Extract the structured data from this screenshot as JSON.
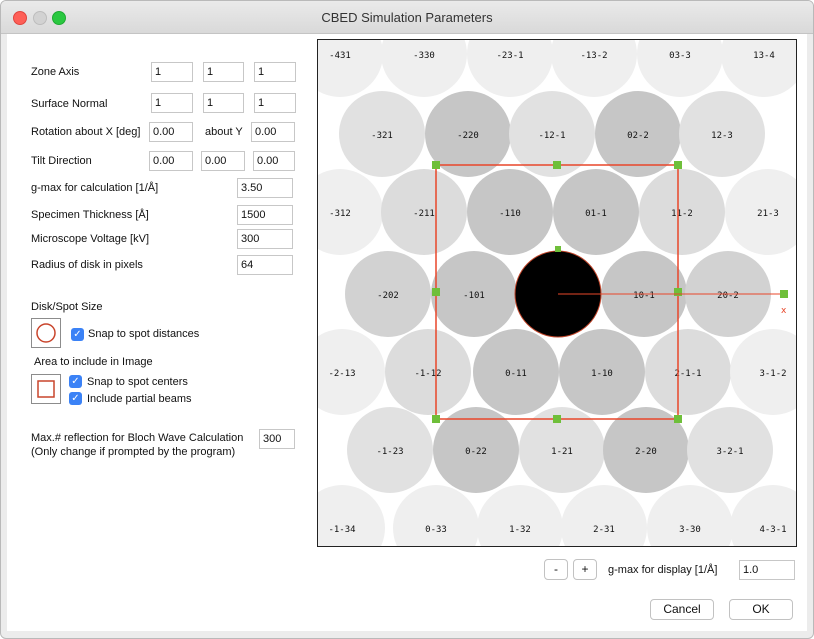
{
  "window": {
    "title": "CBED Simulation Parameters"
  },
  "params": {
    "zone_axis": {
      "label": "Zone Axis",
      "values": [
        "1",
        "1",
        "1"
      ]
    },
    "surface_normal": {
      "label": "Surface Normal",
      "values": [
        "1",
        "1",
        "1"
      ]
    },
    "rotation_x": {
      "label": "Rotation about X [deg]",
      "value": "0.00"
    },
    "about_y": {
      "label": "about Y",
      "value": "0.00"
    },
    "tilt_direction": {
      "label": "Tilt Direction",
      "values": [
        "0.00",
        "0.00",
        "0.00"
      ]
    },
    "gmax_calc": {
      "label": "g-max for calculation [1/Å]",
      "value": "3.50"
    },
    "thickness": {
      "label": "Specimen Thickness [Å]",
      "value": "1500"
    },
    "voltage": {
      "label": "Microscope Voltage [kV]",
      "value": "300"
    },
    "radius": {
      "label": "Radius of disk in pixels",
      "value": "64"
    }
  },
  "disk_spot": {
    "section": "Disk/Spot Size",
    "snap_label": "Snap to spot distances"
  },
  "area": {
    "section": "Area to include in Image",
    "snap_centers": "Snap to spot centers",
    "partial": "Include partial beams"
  },
  "bloch": {
    "label1": "Max.# reflection for Bloch Wave Calculation",
    "label2": "(Only change if prompted by the program)",
    "value": "300"
  },
  "display": {
    "minus": "-",
    "plus": "+",
    "gmax_label": "g-max for display [1/Å]",
    "gmax_value": "1.0"
  },
  "buttons": {
    "cancel": "Cancel",
    "ok": "OK"
  },
  "pattern": {
    "axis_label": "x",
    "rows": [
      [
        "-431",
        "-330",
        "-23-1",
        "-13-2",
        "03-3",
        "13-4"
      ],
      [
        "-321",
        "-220",
        "-12-1",
        "02-2",
        "12-3"
      ],
      [
        "-312",
        "-211",
        "-110",
        "01-1",
        "11-2",
        "21-3"
      ],
      [
        "-202",
        "-101",
        "",
        "10-1",
        "20-2"
      ],
      [
        "-2-13",
        "-1-12",
        "0-11",
        "1-10",
        "2-1-1",
        "3-1-2"
      ],
      [
        "-1-23",
        "0-22",
        "1-21",
        "2-20",
        "3-2-1"
      ],
      [
        "-1-34",
        "0-33",
        "1-32",
        "2-31",
        "3-30",
        "4-3-1"
      ]
    ]
  },
  "colors": {
    "selection": "#e8472a",
    "handle": "#6fbf3a",
    "central_disk": "#000000"
  }
}
